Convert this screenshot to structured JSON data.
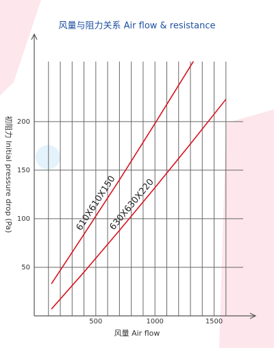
{
  "chart_data": {
    "type": "line",
    "title": "风量与阻力关系  Air flow & resistance",
    "x_label": "风量  Air flow",
    "y_label": "初阻力 Initial pressure drop (Pa)",
    "xlim": [
      0,
      1850
    ],
    "ylim": [
      0,
      290
    ],
    "xticks": [
      500,
      1000,
      1500
    ],
    "x_minor_ticks": [
      100,
      200,
      300,
      400,
      500,
      600,
      700,
      800,
      900,
      1000,
      1100,
      1200,
      1300,
      1400,
      1500,
      1600
    ],
    "yticks": [
      50,
      100,
      150,
      200
    ],
    "grid": true,
    "series": [
      {
        "name": "610X610X150",
        "color": "#d8121c",
        "x": [
          125,
          400,
          700,
          1000,
          1325
        ],
        "values": [
          33,
          84,
          140,
          198,
          262
        ]
      },
      {
        "name": "630X630X220",
        "color": "#d8121c",
        "x": [
          125,
          400,
          700,
          1000,
          1300,
          1600
        ],
        "values": [
          7,
          45,
          88,
          132,
          177,
          223
        ]
      }
    ]
  }
}
